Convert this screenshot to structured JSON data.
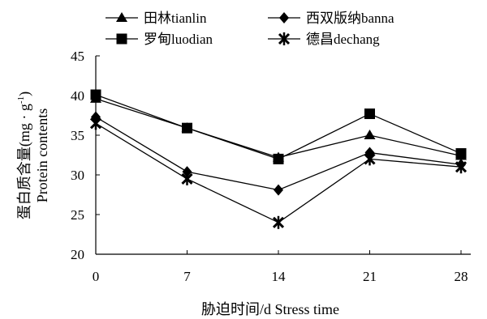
{
  "chart_data": {
    "type": "line",
    "title": "",
    "xlabel": "胁迫时间/d Stress time",
    "ylabel": {
      "line1_main": "蛋白质含量(mg · g",
      "line1_sup": "-1",
      "line1_end": ")",
      "line2": "Protein contents"
    },
    "x": [
      0,
      7,
      14,
      21,
      28
    ],
    "xlim": [
      0,
      28
    ],
    "ylim": [
      20,
      45
    ],
    "yticks": [
      20,
      25,
      30,
      35,
      40,
      45
    ],
    "grid": false,
    "legend_position": "top",
    "series": [
      {
        "name": "田林tianlin",
        "marker": "triangle",
        "values": [
          39.6,
          35.9,
          32.2,
          35.0,
          32.4
        ]
      },
      {
        "name": "西双版纳banna",
        "marker": "diamond",
        "values": [
          37.3,
          30.4,
          28.1,
          32.8,
          31.3
        ]
      },
      {
        "name": "罗甸luodian",
        "marker": "square",
        "values": [
          40.1,
          35.9,
          32.0,
          37.7,
          32.7
        ]
      },
      {
        "name": "德昌dechang",
        "marker": "asterisk",
        "values": [
          36.5,
          29.5,
          24.0,
          32.0,
          31.0
        ]
      }
    ],
    "line_color": "#000000"
  }
}
